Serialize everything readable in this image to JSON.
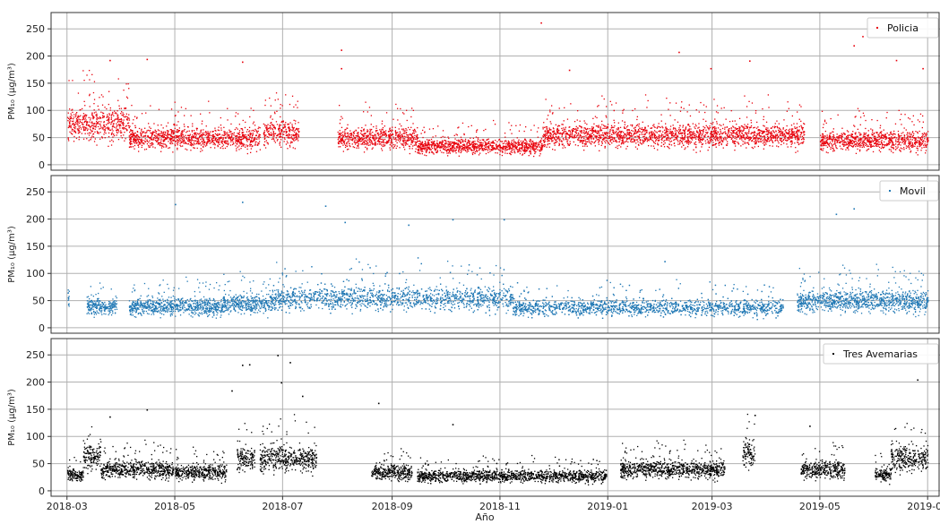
{
  "chart_data": [
    {
      "type": "scatter",
      "series": [
        {
          "name": "Policia",
          "color": "#e8000b",
          "base": 50
        }
      ],
      "ylabel": "PM₁₀ (µg/m³)",
      "ylim": [
        -10,
        280
      ],
      "yticks": [
        0,
        50,
        100,
        150,
        200,
        250
      ],
      "grid": true,
      "legend": "top-right",
      "gaps": [
        [
          "2018-03-07",
          "2018-03-08"
        ],
        [
          "2018-06-18",
          "2018-06-20"
        ],
        [
          "2018-07-13",
          "2018-07-18"
        ],
        [
          "2018-07-23",
          "2018-08-01"
        ],
        [
          "2019-04-15",
          "2019-04-17"
        ],
        [
          "2019-04-23",
          "2019-05-01"
        ]
      ],
      "segments": [
        {
          "start": "2018-03-01",
          "end": "2018-04-05",
          "level": 75
        },
        {
          "start": "2018-04-05",
          "end": "2018-06-18",
          "level": 50
        },
        {
          "start": "2018-06-20",
          "end": "2018-07-10",
          "level": 60
        },
        {
          "start": "2018-08-01",
          "end": "2018-09-15",
          "level": 50
        },
        {
          "start": "2018-09-15",
          "end": "2018-11-25",
          "level": 35
        },
        {
          "start": "2018-11-25",
          "end": "2019-03-01",
          "level": 55
        },
        {
          "start": "2019-03-01",
          "end": "2019-04-22",
          "level": 55
        },
        {
          "start": "2019-05-01",
          "end": "2019-07-01",
          "level": 45
        }
      ],
      "outliers": [
        {
          "x": "2018-11-24",
          "y": 262
        },
        {
          "x": "2019-05-25",
          "y": 237
        },
        {
          "x": "2019-05-20",
          "y": 220
        },
        {
          "x": "2018-08-03",
          "y": 212
        },
        {
          "x": "2019-02-10",
          "y": 208
        },
        {
          "x": "2018-04-15",
          "y": 195
        },
        {
          "x": "2018-03-25",
          "y": 193
        },
        {
          "x": "2018-06-08",
          "y": 190
        },
        {
          "x": "2019-03-22",
          "y": 192
        },
        {
          "x": "2019-06-13",
          "y": 193
        },
        {
          "x": "2018-08-03",
          "y": 178
        },
        {
          "x": "2019-02-28",
          "y": 178
        },
        {
          "x": "2019-06-28",
          "y": 178
        },
        {
          "x": "2018-12-10",
          "y": 175
        }
      ]
    },
    {
      "type": "scatter",
      "series": [
        {
          "name": "Movil",
          "color": "#1f77b4",
          "base": 45
        }
      ],
      "ylabel": "PM₁₀ (µg/m³)",
      "ylim": [
        -10,
        280
      ],
      "yticks": [
        0,
        50,
        100,
        150,
        200,
        250
      ],
      "grid": true,
      "legend": "top-right",
      "gaps": [
        [
          "2018-03-02",
          "2018-03-12"
        ],
        [
          "2018-03-29",
          "2018-04-05"
        ],
        [
          "2019-04-10",
          "2019-04-18"
        ]
      ],
      "segments": [
        {
          "start": "2018-03-01",
          "end": "2018-03-02",
          "level": 55
        },
        {
          "start": "2018-03-12",
          "end": "2018-03-29",
          "level": 40
        },
        {
          "start": "2018-04-05",
          "end": "2018-05-28",
          "level": 40
        },
        {
          "start": "2018-05-28",
          "end": "2018-06-25",
          "level": 45
        },
        {
          "start": "2018-06-25",
          "end": "2018-11-08",
          "level": 55
        },
        {
          "start": "2018-11-08",
          "end": "2019-04-10",
          "level": 38
        },
        {
          "start": "2019-04-18",
          "end": "2019-07-01",
          "level": 50
        }
      ],
      "outliers": [
        {
          "x": "2018-06-08",
          "y": 232
        },
        {
          "x": "2018-05-01",
          "y": 228
        },
        {
          "x": "2019-05-20",
          "y": 220
        },
        {
          "x": "2018-07-25",
          "y": 225
        },
        {
          "x": "2019-06-28",
          "y": 255
        },
        {
          "x": "2018-10-05",
          "y": 200
        },
        {
          "x": "2018-11-03",
          "y": 200
        },
        {
          "x": "2018-08-05",
          "y": 195
        },
        {
          "x": "2019-05-10",
          "y": 210
        },
        {
          "x": "2018-09-10",
          "y": 190
        },
        {
          "x": "2019-02-02",
          "y": 123
        }
      ]
    },
    {
      "type": "scatter",
      "series": [
        {
          "name": "Tres Avemarias",
          "color": "#000000",
          "base": 35
        }
      ],
      "xlabel": "Año",
      "ylabel": "PM₁₀ (µg/m³)",
      "ylim": [
        -10,
        280
      ],
      "yticks": [
        0,
        50,
        100,
        150,
        200,
        250
      ],
      "xlim": [
        "2018-02-20",
        "2019-07-08"
      ],
      "xticks": [
        "2018-03",
        "2018-05",
        "2018-07",
        "2018-09",
        "2018-11",
        "2019-01",
        "2019-03",
        "2019-05",
        "2019-07"
      ],
      "grid": true,
      "legend": "top-right",
      "segments": [
        {
          "start": "2018-03-01",
          "end": "2018-03-10",
          "level": 30
        },
        {
          "start": "2018-03-10",
          "end": "2018-03-20",
          "level": 65
        },
        {
          "start": "2018-03-20",
          "end": "2018-04-30",
          "level": 40
        },
        {
          "start": "2018-05-01",
          "end": "2018-05-30",
          "level": 35
        },
        {
          "start": "2018-06-05",
          "end": "2018-06-15",
          "level": 60
        },
        {
          "start": "2018-06-18",
          "end": "2018-07-20",
          "level": 60
        },
        {
          "start": "2018-08-20",
          "end": "2018-09-12",
          "level": 35
        },
        {
          "start": "2018-09-15",
          "end": "2018-12-31",
          "level": 28
        },
        {
          "start": "2019-01-08",
          "end": "2019-03-08",
          "level": 40
        },
        {
          "start": "2019-03-18",
          "end": "2019-03-25",
          "level": 70
        },
        {
          "start": "2019-04-20",
          "end": "2019-05-15",
          "level": 40
        },
        {
          "start": "2019-06-01",
          "end": "2019-06-10",
          "level": 30
        },
        {
          "start": "2019-06-10",
          "end": "2019-07-01",
          "level": 60
        }
      ],
      "outliers": [
        {
          "x": "2018-06-28",
          "y": 250
        },
        {
          "x": "2018-07-05",
          "y": 237
        },
        {
          "x": "2018-06-12",
          "y": 233
        },
        {
          "x": "2018-06-08",
          "y": 232
        },
        {
          "x": "2019-06-25",
          "y": 205
        },
        {
          "x": "2018-06-30",
          "y": 200
        },
        {
          "x": "2018-06-02",
          "y": 185
        },
        {
          "x": "2018-07-12",
          "y": 175
        },
        {
          "x": "2018-08-24",
          "y": 162
        },
        {
          "x": "2018-04-15",
          "y": 150
        },
        {
          "x": "2018-03-25",
          "y": 137
        },
        {
          "x": "2019-03-25",
          "y": 140
        },
        {
          "x": "2018-10-05",
          "y": 123
        },
        {
          "x": "2019-04-25",
          "y": 120
        }
      ]
    }
  ]
}
